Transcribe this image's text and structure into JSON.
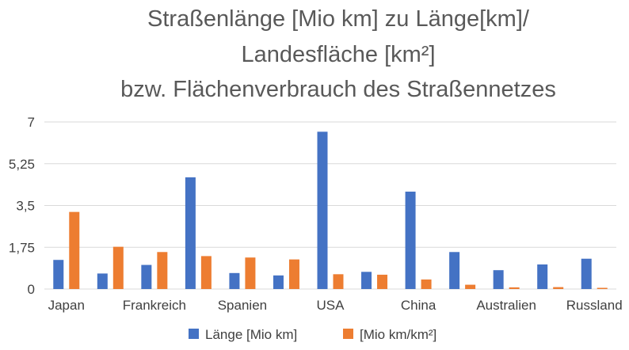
{
  "chart_data": {
    "type": "bar",
    "title_lines": [
      "Straßenlänge [Mio km] zu Länge[km]/",
      "Landesfläche [km²]",
      "bzw. Flächenverbrauch des Straßennetzes"
    ],
    "categories": [
      "Japan",
      "",
      "Frankreich",
      "",
      "Spanien",
      "",
      "USA",
      "",
      "China",
      "",
      "Australien",
      "",
      "Russland"
    ],
    "series": [
      {
        "name": "Länge [Mio km]",
        "color": "#4472C4",
        "values": [
          1.22,
          0.65,
          1.01,
          4.68,
          0.67,
          0.57,
          6.59,
          0.72,
          4.08,
          1.55,
          0.79,
          1.03,
          1.27
        ]
      },
      {
        "name": "[Mio km/km²]",
        "color": "#ED7D31",
        "values": [
          3.23,
          1.77,
          1.55,
          1.38,
          1.32,
          1.24,
          0.62,
          0.6,
          0.4,
          0.18,
          0.07,
          0.08,
          0.05
        ]
      }
    ],
    "yticks": [
      "0",
      "1,75",
      "3,5",
      "5,25",
      "7"
    ],
    "ylim": [
      0,
      7
    ],
    "grid": true,
    "legend_position": "bottom"
  }
}
